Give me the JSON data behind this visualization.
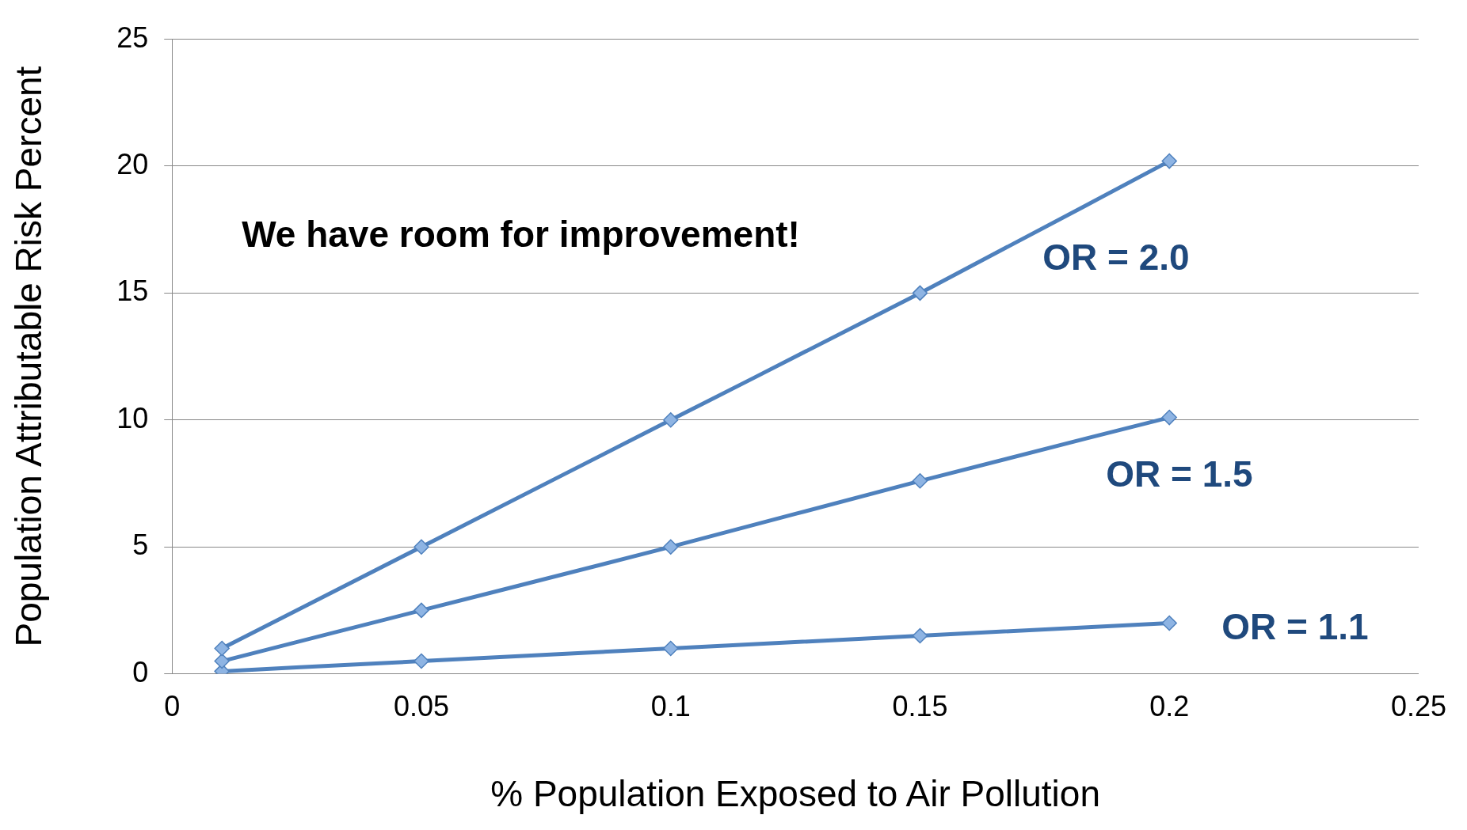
{
  "chart_data": {
    "type": "line",
    "xlabel": "% Population Exposed to Air Pollution",
    "ylabel": "Population Attributable Risk Percent",
    "annotations": [
      "We have room for improvement!"
    ],
    "series": [
      {
        "name": "OR = 2.0",
        "color": "#4f81bd",
        "x": [
          0.01,
          0.05,
          0.1,
          0.15,
          0.2
        ],
        "values": [
          1,
          5,
          10,
          15,
          20.2
        ]
      },
      {
        "name": "OR = 1.5",
        "color": "#4f81bd",
        "x": [
          0.01,
          0.05,
          0.1,
          0.15,
          0.2
        ],
        "values": [
          0.5,
          2.5,
          5,
          7.6,
          10.1
        ]
      },
      {
        "name": "OR = 1.1",
        "color": "#4f81bd",
        "x": [
          0.01,
          0.05,
          0.1,
          0.15,
          0.2
        ],
        "values": [
          0.1,
          0.5,
          1,
          1.5,
          2
        ]
      }
    ],
    "xlim": [
      0,
      0.25
    ],
    "xticks": [
      0,
      0.05,
      0.1,
      0.15,
      0.2,
      0.25
    ],
    "ylim": [
      0,
      25
    ],
    "yticks": [
      0,
      5,
      10,
      15,
      20,
      25
    ],
    "grid": "y",
    "legend": false,
    "marker": "diamond",
    "line_style": "solid"
  }
}
